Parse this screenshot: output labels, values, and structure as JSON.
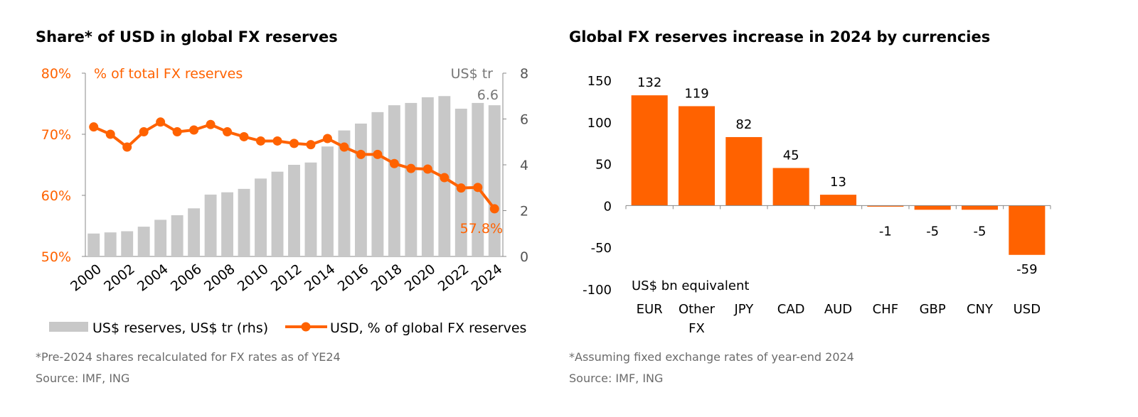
{
  "colors": {
    "orange": "#FF6200",
    "gray_bar": "#C8C8C8",
    "axis": "#888888",
    "text": "#000000",
    "note": "#6B6B6B"
  },
  "left": {
    "title": "Share* of USD in global FX reserves",
    "lhs_unit_label": "% of total FX reserves",
    "rhs_unit_label": "US$ tr",
    "last_bar_label": "6.6",
    "last_line_label": "57.8%",
    "legend_bar": "US$ reserves, US$ tr (rhs)",
    "legend_line": "USD, % of global FX reserves",
    "footnote": "*Pre-2024 shares recalculated for FX rates as of YE24",
    "source": "Source: IMF, ING"
  },
  "right": {
    "title": "Global FX reserves increase in 2024 by currencies",
    "unit_label": "US$ bn equivalent",
    "footnote": "*Assuming fixed exchange rates of year-end 2024",
    "source": "Source: IMF, ING"
  },
  "chart_data": [
    {
      "type": "bar+line",
      "title": "Share* of USD in global FX reserves",
      "x_tick_labels": [
        "2000",
        "2002",
        "2004",
        "2006",
        "2008",
        "2010",
        "2012",
        "2014",
        "2016",
        "2018",
        "2020",
        "2022",
        "2024"
      ],
      "series": [
        {
          "name": "US$ reserves, US$ tr (rhs)",
          "type": "bar",
          "axis": "right",
          "x": [
            2000,
            2001,
            2002,
            2003,
            2004,
            2005,
            2006,
            2007,
            2008,
            2009,
            2010,
            2011,
            2012,
            2013,
            2014,
            2015,
            2016,
            2017,
            2018,
            2019,
            2020,
            2021,
            2022,
            2023,
            2024
          ],
          "values": [
            1.0,
            1.05,
            1.1,
            1.3,
            1.6,
            1.8,
            2.1,
            2.7,
            2.8,
            2.95,
            3.4,
            3.7,
            4.0,
            4.1,
            4.8,
            5.5,
            5.8,
            6.3,
            6.6,
            6.7,
            6.95,
            7.0,
            6.45,
            6.7,
            6.6
          ]
        },
        {
          "name": "USD, % of global FX reserves",
          "type": "line",
          "axis": "left",
          "x": [
            2000,
            2001,
            2002,
            2003,
            2004,
            2005,
            2006,
            2007,
            2008,
            2009,
            2010,
            2011,
            2012,
            2013,
            2014,
            2015,
            2016,
            2017,
            2018,
            2019,
            2020,
            2021,
            2022,
            2023,
            2024
          ],
          "values": [
            71.2,
            70.0,
            67.9,
            70.4,
            72.0,
            70.4,
            70.7,
            71.6,
            70.4,
            69.6,
            68.9,
            68.9,
            68.5,
            68.3,
            69.3,
            67.9,
            66.7,
            66.7,
            65.2,
            64.4,
            64.3,
            62.9,
            61.2,
            61.3,
            57.8
          ]
        }
      ],
      "ylim_left": [
        50,
        80
      ],
      "yticks_left": [
        "50%",
        "60%",
        "70%",
        "80%"
      ],
      "ylim_right": [
        0,
        8
      ],
      "yticks_right": [
        "0",
        "2",
        "4",
        "6",
        "8"
      ],
      "legend_position": "bottom"
    },
    {
      "type": "bar",
      "title": "Global FX reserves increase in 2024 by currencies",
      "ylabel": "US$ bn equivalent",
      "categories": [
        [
          "EUR"
        ],
        [
          "Other",
          "FX"
        ],
        [
          "JPY"
        ],
        [
          "CAD"
        ],
        [
          "AUD"
        ],
        [
          "CHF"
        ],
        [
          "GBP"
        ],
        [
          "CNY"
        ],
        [
          "USD"
        ]
      ],
      "values": [
        132,
        119,
        82,
        45,
        13,
        -1,
        -5,
        -5,
        -59
      ],
      "ylim": [
        -100,
        150
      ],
      "yticks": [
        "-100",
        "-50",
        "0",
        "50",
        "100",
        "150"
      ]
    }
  ]
}
